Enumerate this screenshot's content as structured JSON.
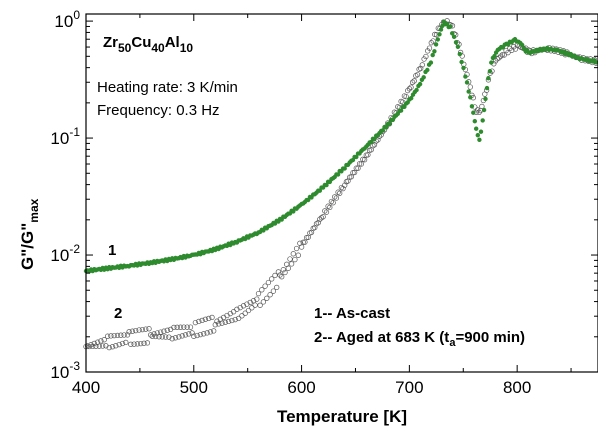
{
  "chart_data": {
    "type": "scatter",
    "title_parts": [
      "Zr",
      "50",
      "Cu",
      "40",
      "Al",
      "10"
    ],
    "annotations": {
      "heating_rate": "Heating rate: 3 K/min",
      "frequency": "Frequency: 0.3 Hz"
    },
    "xlabel": "Temperature [K]",
    "ylabel_parts": [
      "G\"/G\"",
      "max"
    ],
    "x_ticks": [
      "400",
      "500",
      "600",
      "700",
      "800"
    ],
    "y_ticks": [
      {
        "base": "10",
        "exp": "-3"
      },
      {
        "base": "10",
        "exp": "-2"
      },
      {
        "base": "10",
        "exp": "-1"
      },
      {
        "base": "10",
        "exp": "0"
      }
    ],
    "xlim": [
      400,
      875
    ],
    "ylim": [
      0.001,
      1.15
    ],
    "y_scale": "log",
    "colors": {
      "series1": "#2e8b2e",
      "series2": "#555555"
    },
    "series_labels": [
      {
        "id": "1",
        "color": "#2e8b2e"
      },
      {
        "id": "2",
        "color": "#000000"
      }
    ],
    "legend": [
      {
        "text": "1-- As-cast",
        "color": "#2e8b2e"
      },
      {
        "text_parts": [
          "2-- Aged at 683 K (t",
          "a",
          "=900 min)"
        ],
        "color": "#000000"
      }
    ],
    "series": [
      {
        "id": "1",
        "marker": "filled-circle",
        "points": [
          [
            400,
            0.0073
          ],
          [
            420,
            0.0077
          ],
          [
            440,
            0.0081
          ],
          [
            460,
            0.0086
          ],
          [
            480,
            0.0092
          ],
          [
            500,
            0.01
          ],
          [
            520,
            0.0112
          ],
          [
            540,
            0.013
          ],
          [
            560,
            0.0156
          ],
          [
            580,
            0.02
          ],
          [
            600,
            0.027
          ],
          [
            620,
            0.038
          ],
          [
            640,
            0.056
          ],
          [
            660,
            0.085
          ],
          [
            680,
            0.13
          ],
          [
            700,
            0.21
          ],
          [
            710,
            0.29
          ],
          [
            720,
            0.45
          ],
          [
            728,
            0.78
          ],
          [
            732,
            0.98
          ],
          [
            738,
            0.88
          ],
          [
            745,
            0.6
          ],
          [
            752,
            0.34
          ],
          [
            758,
            0.19
          ],
          [
            762,
            0.12
          ],
          [
            765,
            0.095
          ],
          [
            768,
            0.14
          ],
          [
            772,
            0.27
          ],
          [
            776,
            0.45
          ],
          [
            782,
            0.57
          ],
          [
            790,
            0.63
          ],
          [
            798,
            0.69
          ],
          [
            803,
            0.65
          ],
          [
            808,
            0.56
          ],
          [
            812,
            0.54
          ],
          [
            818,
            0.56
          ],
          [
            828,
            0.58
          ],
          [
            838,
            0.56
          ],
          [
            848,
            0.52
          ],
          [
            858,
            0.48
          ],
          [
            868,
            0.46
          ],
          [
            875,
            0.45
          ]
        ]
      },
      {
        "id": "2",
        "marker": "open-circle",
        "points": [
          [
            400,
            0.00165
          ],
          [
            420,
            0.0018
          ],
          [
            440,
            0.00195
          ],
          [
            460,
            0.00205
          ],
          [
            480,
            0.00215
          ],
          [
            500,
            0.0023
          ],
          [
            520,
            0.0026
          ],
          [
            540,
            0.0031
          ],
          [
            560,
            0.0041
          ],
          [
            580,
            0.0065
          ],
          [
            600,
            0.012
          ],
          [
            620,
            0.022
          ],
          [
            640,
            0.04
          ],
          [
            660,
            0.07
          ],
          [
            680,
            0.13
          ],
          [
            700,
            0.26
          ],
          [
            712,
            0.43
          ],
          [
            722,
            0.7
          ],
          [
            730,
            0.95
          ],
          [
            735,
            0.99
          ],
          [
            740,
            0.88
          ],
          [
            746,
            0.62
          ],
          [
            752,
            0.39
          ],
          [
            758,
            0.24
          ],
          [
            762,
            0.17
          ],
          [
            766,
            0.17
          ],
          [
            770,
            0.23
          ],
          [
            775,
            0.35
          ],
          [
            780,
            0.46
          ],
          [
            788,
            0.53
          ],
          [
            795,
            0.58
          ],
          [
            802,
            0.61
          ],
          [
            808,
            0.57
          ],
          [
            812,
            0.54
          ],
          [
            818,
            0.56
          ],
          [
            828,
            0.58
          ],
          [
            838,
            0.56
          ],
          [
            848,
            0.52
          ],
          [
            858,
            0.48
          ],
          [
            868,
            0.46
          ],
          [
            875,
            0.45
          ]
        ]
      }
    ]
  }
}
